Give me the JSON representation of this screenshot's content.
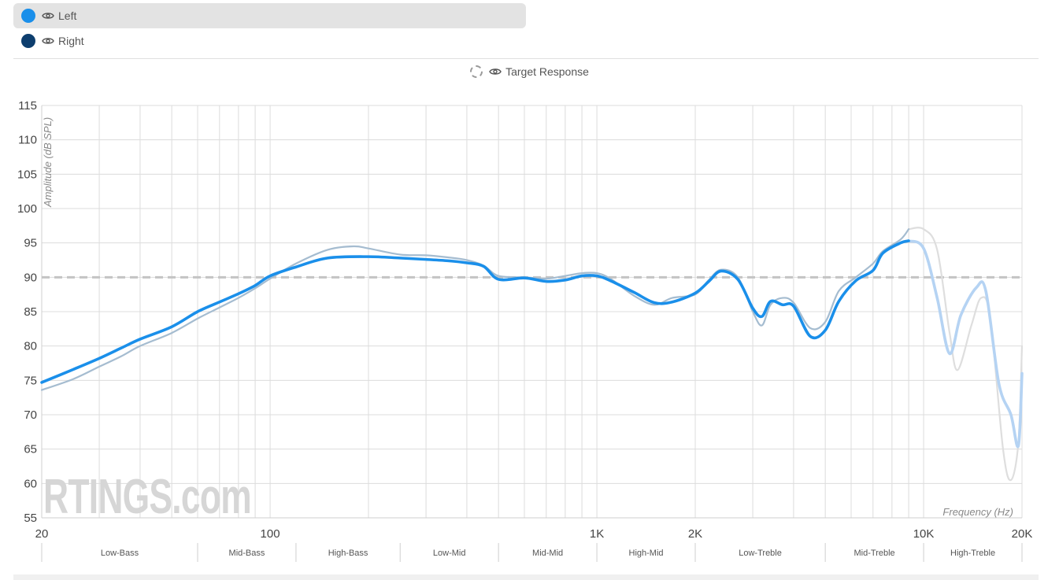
{
  "legend": {
    "left": {
      "label": "Left",
      "color": "#1a8fea",
      "selected": true
    },
    "right": {
      "label": "Right",
      "color": "#0d3e6e",
      "selected": false
    },
    "target": {
      "label": "Target Response"
    }
  },
  "watermark": "RTINGS.com",
  "chart_data": {
    "type": "line",
    "x_scale": "log",
    "xlim": [
      20,
      20000
    ],
    "ylim": [
      55,
      115
    ],
    "ylabel": "Amplitude (dB SPL)",
    "xlabel": "Frequency (Hz)",
    "y_ticks": [
      55,
      60,
      65,
      70,
      75,
      80,
      85,
      90,
      95,
      100,
      105,
      110,
      115
    ],
    "x_tick_labels": [
      {
        "value": 20,
        "label": "20"
      },
      {
        "value": 100,
        "label": "100"
      },
      {
        "value": 1000,
        "label": "1K"
      },
      {
        "value": 2000,
        "label": "2K"
      },
      {
        "value": 10000,
        "label": "10K"
      },
      {
        "value": 20000,
        "label": "20K"
      }
    ],
    "x_gridlines": [
      20,
      30,
      40,
      50,
      60,
      70,
      80,
      90,
      100,
      200,
      300,
      400,
      500,
      600,
      700,
      800,
      900,
      1000,
      2000,
      3000,
      4000,
      5000,
      6000,
      7000,
      8000,
      9000,
      10000,
      20000
    ],
    "target_level": 90,
    "bands": [
      {
        "label": "Low-Bass",
        "from": 20,
        "to": 60
      },
      {
        "label": "Mid-Bass",
        "from": 60,
        "to": 120
      },
      {
        "label": "High-Bass",
        "from": 120,
        "to": 250
      },
      {
        "label": "Low-Mid",
        "from": 250,
        "to": 500
      },
      {
        "label": "Mid-Mid",
        "from": 500,
        "to": 1000
      },
      {
        "label": "High-Mid",
        "from": 1000,
        "to": 2000
      },
      {
        "label": "Low-Treble",
        "from": 2000,
        "to": 5000
      },
      {
        "label": "Mid-Treble",
        "from": 5000,
        "to": 10000
      },
      {
        "label": "High-Treble",
        "from": 10000,
        "to": 20000
      }
    ],
    "series": [
      {
        "name": "Left",
        "color": "#1a8fea",
        "fade_after": 9000,
        "faded_color": "#b5d3f3",
        "points": [
          [
            20,
            74.7
          ],
          [
            25,
            76.6
          ],
          [
            30,
            78.2
          ],
          [
            35,
            79.7
          ],
          [
            40,
            81.0
          ],
          [
            50,
            82.8
          ],
          [
            60,
            85.0
          ],
          [
            70,
            86.4
          ],
          [
            80,
            87.6
          ],
          [
            90,
            88.8
          ],
          [
            100,
            90.2
          ],
          [
            120,
            91.5
          ],
          [
            150,
            92.8
          ],
          [
            200,
            93.0
          ],
          [
            250,
            92.8
          ],
          [
            300,
            92.6
          ],
          [
            350,
            92.4
          ],
          [
            400,
            92.1
          ],
          [
            450,
            91.6
          ],
          [
            500,
            89.7
          ],
          [
            600,
            89.9
          ],
          [
            700,
            89.4
          ],
          [
            800,
            89.6
          ],
          [
            900,
            90.2
          ],
          [
            1000,
            90.2
          ],
          [
            1100,
            89.5
          ],
          [
            1300,
            87.8
          ],
          [
            1500,
            86.3
          ],
          [
            1700,
            86.4
          ],
          [
            2000,
            87.7
          ],
          [
            2200,
            89.4
          ],
          [
            2400,
            90.9
          ],
          [
            2700,
            89.7
          ],
          [
            3000,
            85.5
          ],
          [
            3200,
            84.3
          ],
          [
            3400,
            86.5
          ],
          [
            3700,
            86.0
          ],
          [
            4000,
            85.8
          ],
          [
            4500,
            81.4
          ],
          [
            5000,
            82.3
          ],
          [
            5500,
            86.5
          ],
          [
            6200,
            89.5
          ],
          [
            7000,
            91.0
          ],
          [
            7500,
            93.5
          ],
          [
            8500,
            95.0
          ],
          [
            9000,
            95.3
          ],
          [
            10000,
            94.2
          ],
          [
            11000,
            87.0
          ],
          [
            12000,
            78.9
          ],
          [
            13000,
            84.5
          ],
          [
            14500,
            88.5
          ],
          [
            15500,
            88.0
          ],
          [
            17000,
            74.5
          ],
          [
            18500,
            70.0
          ],
          [
            19500,
            65.5
          ],
          [
            20000,
            76.0
          ]
        ]
      },
      {
        "name": "Right",
        "color": "#a5bcd0",
        "fade_after": 9000,
        "faded_color": "#dedede",
        "points": [
          [
            20,
            73.6
          ],
          [
            25,
            75.2
          ],
          [
            30,
            77.0
          ],
          [
            35,
            78.5
          ],
          [
            40,
            80.0
          ],
          [
            50,
            81.9
          ],
          [
            60,
            84.0
          ],
          [
            70,
            85.6
          ],
          [
            80,
            87.0
          ],
          [
            90,
            88.4
          ],
          [
            100,
            89.8
          ],
          [
            120,
            92.0
          ],
          [
            150,
            94.0
          ],
          [
            180,
            94.5
          ],
          [
            200,
            94.2
          ],
          [
            250,
            93.3
          ],
          [
            300,
            93.2
          ],
          [
            350,
            92.9
          ],
          [
            400,
            92.5
          ],
          [
            450,
            91.7
          ],
          [
            500,
            90.2
          ],
          [
            600,
            90.0
          ],
          [
            700,
            89.8
          ],
          [
            800,
            90.2
          ],
          [
            900,
            90.6
          ],
          [
            1000,
            90.6
          ],
          [
            1100,
            89.8
          ],
          [
            1300,
            87.3
          ],
          [
            1500,
            86.0
          ],
          [
            1700,
            87.0
          ],
          [
            2000,
            87.5
          ],
          [
            2200,
            89.6
          ],
          [
            2400,
            91.1
          ],
          [
            2700,
            90.0
          ],
          [
            3000,
            85.0
          ],
          [
            3200,
            83.0
          ],
          [
            3400,
            86.0
          ],
          [
            3700,
            87.0
          ],
          [
            4000,
            86.3
          ],
          [
            4500,
            82.6
          ],
          [
            5000,
            83.5
          ],
          [
            5500,
            88.0
          ],
          [
            6200,
            90.0
          ],
          [
            7000,
            92.0
          ],
          [
            7500,
            93.8
          ],
          [
            8500,
            95.5
          ],
          [
            9000,
            97.0
          ],
          [
            10000,
            97.0
          ],
          [
            11000,
            94.0
          ],
          [
            12000,
            82.0
          ],
          [
            12700,
            76.5
          ],
          [
            14000,
            83.0
          ],
          [
            15000,
            87.0
          ],
          [
            16000,
            84.0
          ],
          [
            17500,
            65.0
          ],
          [
            18500,
            60.5
          ],
          [
            19500,
            66.0
          ],
          [
            20000,
            80.0
          ]
        ]
      }
    ]
  }
}
